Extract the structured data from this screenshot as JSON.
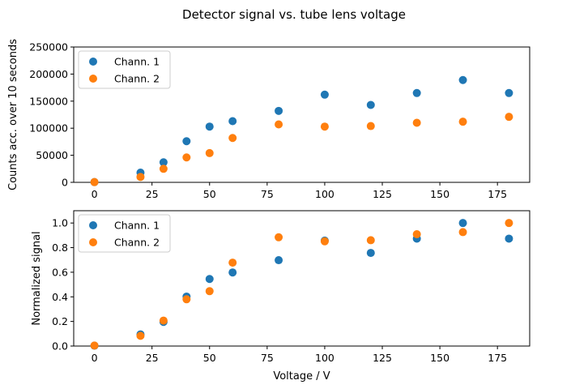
{
  "figure": {
    "suptitle": "Detector signal vs. tube lens voltage"
  },
  "chart_data": [
    {
      "type": "scatter",
      "title": "",
      "xlabel": "",
      "ylabel": "Counts acc. over 10 seconds",
      "xlim": [
        -9,
        189
      ],
      "ylim": [
        0,
        250000
      ],
      "xticks": [
        0,
        25,
        50,
        75,
        100,
        125,
        150,
        175
      ],
      "yticks": [
        0,
        50000,
        100000,
        150000,
        200000,
        250000
      ],
      "xtick_labels": [
        "0",
        "25",
        "50",
        "75",
        "100",
        "125",
        "150",
        "175"
      ],
      "ytick_labels": [
        "0",
        "50000",
        "100000",
        "150000",
        "200000",
        "250000"
      ],
      "grid": false,
      "legend_position": "top-left",
      "series": [
        {
          "name": "Chann. 1",
          "color": "#1f77b4",
          "x": [
            0,
            20,
            30,
            40,
            50,
            60,
            80,
            100,
            120,
            140,
            160,
            180
          ],
          "y": [
            500,
            18000,
            37000,
            76000,
            103000,
            113000,
            132000,
            162000,
            143000,
            165000,
            189000,
            165000
          ]
        },
        {
          "name": "Chann. 2",
          "color": "#ff7f0e",
          "x": [
            0,
            20,
            30,
            40,
            50,
            60,
            80,
            100,
            120,
            140,
            160,
            180
          ],
          "y": [
            500,
            10000,
            25000,
            46000,
            54000,
            82000,
            107000,
            103000,
            104000,
            110000,
            112000,
            121000
          ]
        }
      ]
    },
    {
      "type": "scatter",
      "title": "",
      "xlabel": "Voltage / V",
      "ylabel": "Normalized signal",
      "xlim": [
        -9,
        189
      ],
      "ylim": [
        0,
        1.1
      ],
      "xticks": [
        0,
        25,
        50,
        75,
        100,
        125,
        150,
        175
      ],
      "yticks": [
        0,
        0.2,
        0.4,
        0.6,
        0.8,
        1.0
      ],
      "xtick_labels": [
        "0",
        "25",
        "50",
        "75",
        "100",
        "125",
        "150",
        "175"
      ],
      "ytick_labels": [
        "0.0",
        "0.2",
        "0.4",
        "0.6",
        "0.8",
        "1.0"
      ],
      "grid": false,
      "legend_position": "top-left",
      "series": [
        {
          "name": "Chann. 1",
          "color": "#1f77b4",
          "x": [
            0,
            20,
            30,
            40,
            50,
            60,
            80,
            100,
            120,
            140,
            160,
            180
          ],
          "y": [
            0.003,
            0.095,
            0.196,
            0.402,
            0.545,
            0.598,
            0.698,
            0.857,
            0.757,
            0.873,
            1.0,
            0.873
          ]
        },
        {
          "name": "Chann. 2",
          "color": "#ff7f0e",
          "x": [
            0,
            20,
            30,
            40,
            50,
            60,
            80,
            100,
            120,
            140,
            160,
            180
          ],
          "y": [
            0.004,
            0.083,
            0.207,
            0.38,
            0.446,
            0.678,
            0.884,
            0.851,
            0.86,
            0.909,
            0.926,
            1.0
          ]
        }
      ]
    }
  ]
}
